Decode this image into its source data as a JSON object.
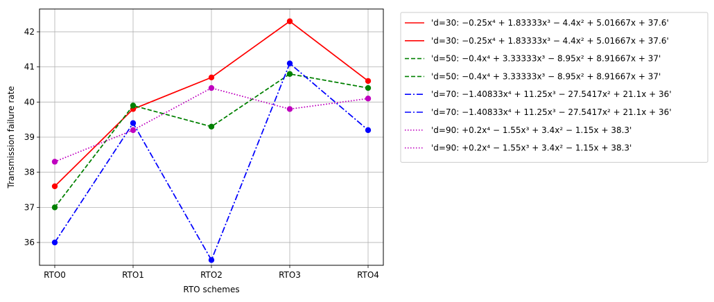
{
  "chart_data": {
    "type": "line",
    "xlabel": "RTO schemes",
    "ylabel": "Transmission failure rate",
    "categories": [
      "RTO0",
      "RTO1",
      "RTO2",
      "RTO3",
      "RTO4"
    ],
    "ylim": [
      35.35,
      42.65
    ],
    "yticks": [
      36,
      37,
      38,
      39,
      40,
      41,
      42
    ],
    "grid": true,
    "legend_placement": "outside-right",
    "series": [
      {
        "name": "'d=30: −0.25x⁴ + 1.83333x³ − 4.4x² + 5.01667x + 37.6'",
        "values": [
          37.6,
          39.8,
          40.7,
          42.3,
          40.6
        ],
        "color": "#ff0000",
        "style": "solid",
        "markers": true
      },
      {
        "name": "'d=30: −0.25x⁴ + 1.83333x³ − 4.4x² + 5.01667x + 37.6'",
        "values": [
          37.6,
          39.8,
          40.7,
          42.3,
          40.6
        ],
        "color": "#ff0000",
        "style": "solid",
        "markers": false
      },
      {
        "name": "'d=50: −0.4x⁴ + 3.33333x³ − 8.95x² + 8.91667x + 37'",
        "values": [
          37.0,
          39.9,
          39.3,
          40.8,
          40.4
        ],
        "color": "#008000",
        "style": "dashed",
        "markers": true
      },
      {
        "name": "'d=50: −0.4x⁴ + 3.33333x³ − 8.95x² + 8.91667x + 37'",
        "values": [
          37.0,
          39.9,
          39.3,
          40.8,
          40.4
        ],
        "color": "#008000",
        "style": "dashed",
        "markers": false
      },
      {
        "name": "'d=70: −1.40833x⁴ + 11.25x³ − 27.5417x² + 21.1x + 36'",
        "values": [
          36.0,
          39.4,
          35.5,
          41.1,
          39.2
        ],
        "color": "#0000ff",
        "style": "dashdot",
        "markers": true
      },
      {
        "name": "'d=70: −1.40833x⁴ + 11.25x³ − 27.5417x² + 21.1x + 36'",
        "values": [
          36.0,
          39.4,
          35.5,
          41.1,
          39.2
        ],
        "color": "#0000ff",
        "style": "dashdot",
        "markers": false
      },
      {
        "name": "'d=90: +0.2x⁴ − 1.55x³ + 3.4x² − 1.15x + 38.3'",
        "values": [
          38.3,
          39.2,
          40.4,
          39.8,
          40.1
        ],
        "color": "#bf00bf",
        "style": "dotted",
        "markers": true
      },
      {
        "name": "'d=90: +0.2x⁴ − 1.55x³ + 3.4x² − 1.15x + 38.3'",
        "values": [
          38.3,
          39.2,
          40.4,
          39.8,
          40.1
        ],
        "color": "#bf00bf",
        "style": "dotted",
        "markers": false
      }
    ]
  }
}
